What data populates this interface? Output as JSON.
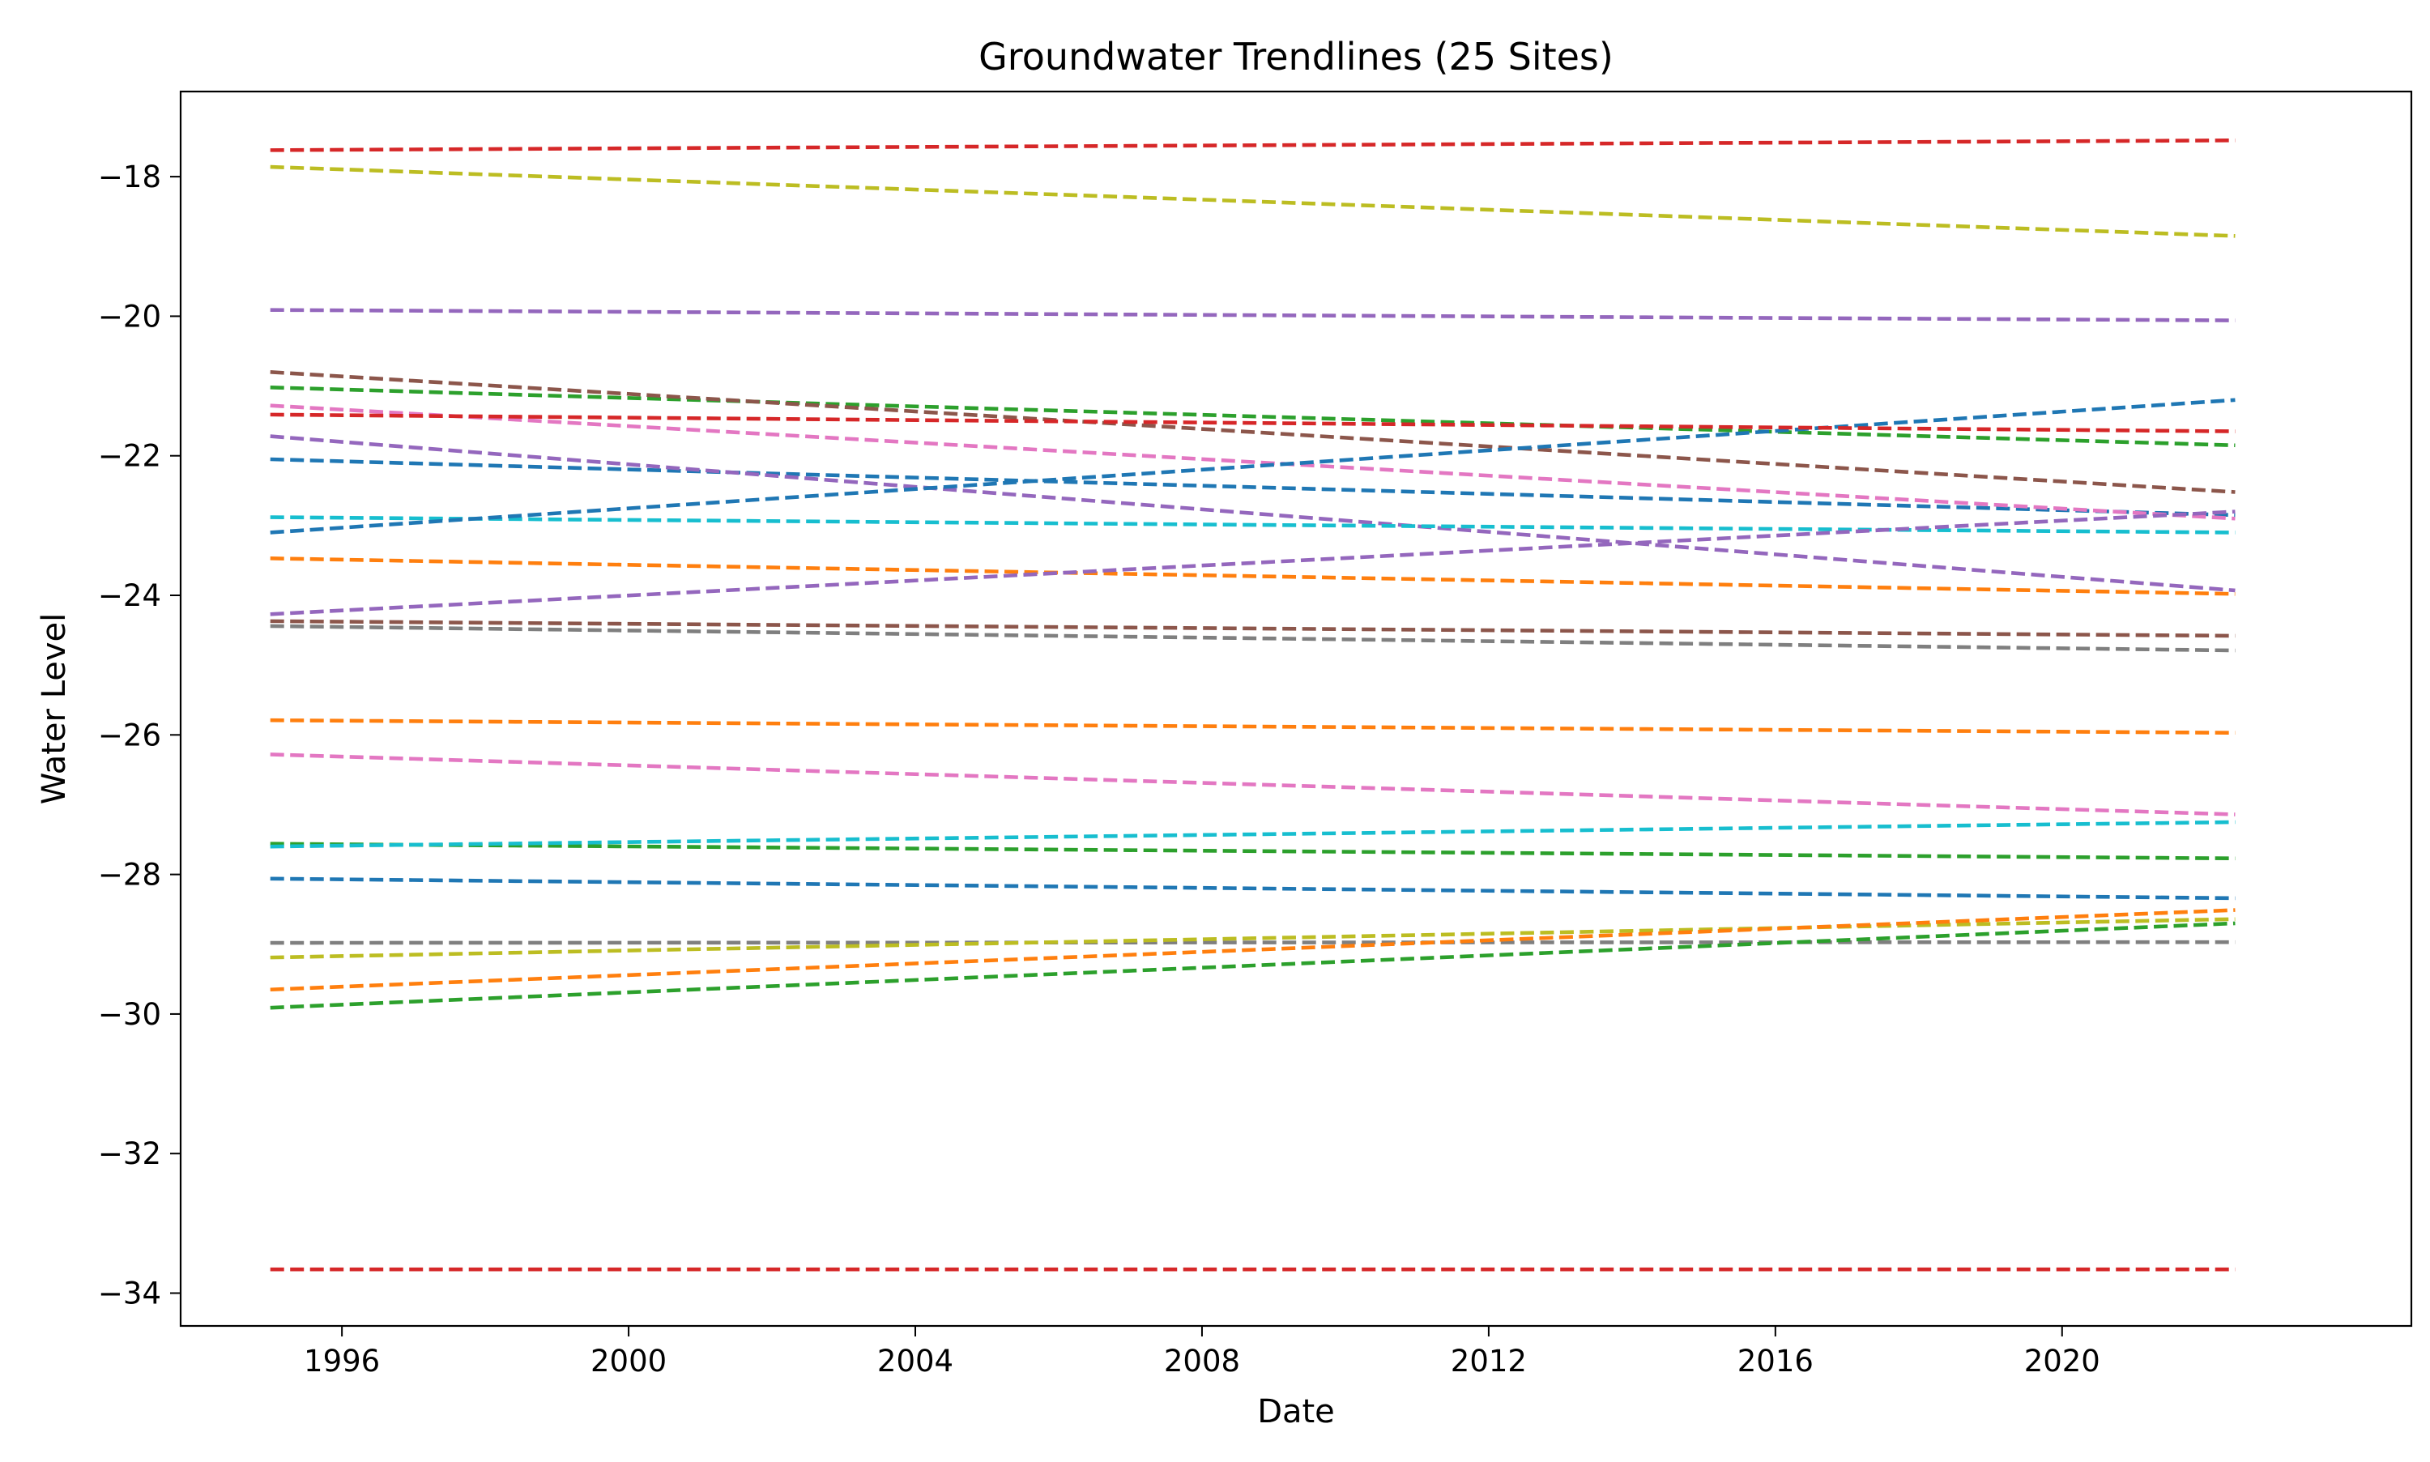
{
  "chart_data": {
    "type": "line",
    "title": "Groundwater Trendlines (25 Sites)",
    "xlabel": "Date",
    "ylabel": "Water Level",
    "x_ticks": [
      "1996",
      "2000",
      "2004",
      "2008",
      "2012",
      "2016",
      "2020"
    ],
    "y_ticks": [
      "−18",
      "−20",
      "−22",
      "−24",
      "−26",
      "−28",
      "−30",
      "−32",
      "−34"
    ],
    "xlim": [
      "1993-10-01",
      "2024-11-15"
    ],
    "ylim": [
      -34.47,
      -16.78
    ],
    "x": [
      "1995-01-01",
      "2022-06-01"
    ],
    "line_style": "dashed",
    "grid": false,
    "legend": "none",
    "series": [
      {
        "values": [
          -22.05,
          -22.85
        ],
        "color": "#1f77b4"
      },
      {
        "values": [
          -23.47,
          -23.98
        ],
        "color": "#ff7f0e"
      },
      {
        "values": [
          -21.02,
          -21.85
        ],
        "color": "#2ca02c"
      },
      {
        "values": [
          -17.62,
          -17.48
        ],
        "color": "#d62728"
      },
      {
        "values": [
          -21.72,
          -23.93
        ],
        "color": "#9467bd"
      },
      {
        "values": [
          -20.8,
          -22.52
        ],
        "color": "#8c564b"
      },
      {
        "values": [
          -21.28,
          -22.9
        ],
        "color": "#e377c2"
      },
      {
        "values": [
          -24.44,
          -24.79
        ],
        "color": "#7f7f7f"
      },
      {
        "values": [
          -17.86,
          -18.85
        ],
        "color": "#bcbd22"
      },
      {
        "values": [
          -22.88,
          -23.1
        ],
        "color": "#17becf"
      },
      {
        "values": [
          -23.1,
          -21.2
        ],
        "color": "#1f77b4"
      },
      {
        "values": [
          -25.79,
          -25.97
        ],
        "color": "#ff7f0e"
      },
      {
        "values": [
          -27.56,
          -27.77
        ],
        "color": "#2ca02c"
      },
      {
        "values": [
          -21.41,
          -21.65
        ],
        "color": "#d62728"
      },
      {
        "values": [
          -19.91,
          -20.06
        ],
        "color": "#9467bd"
      },
      {
        "values": [
          -24.37,
          -24.58
        ],
        "color": "#8c564b"
      },
      {
        "values": [
          -26.28,
          -27.14
        ],
        "color": "#e377c2"
      },
      {
        "values": [
          -28.98,
          -28.97
        ],
        "color": "#7f7f7f"
      },
      {
        "values": [
          -29.19,
          -28.64
        ],
        "color": "#bcbd22"
      },
      {
        "values": [
          -27.6,
          -27.25
        ],
        "color": "#17becf"
      },
      {
        "values": [
          -28.06,
          -28.34
        ],
        "color": "#1f77b4"
      },
      {
        "values": [
          -29.65,
          -28.51
        ],
        "color": "#ff7f0e"
      },
      {
        "values": [
          -29.91,
          -28.7
        ],
        "color": "#2ca02c"
      },
      {
        "values": [
          -33.66,
          -33.66
        ],
        "color": "#d62728"
      },
      {
        "values": [
          -24.27,
          -22.8
        ],
        "color": "#9467bd"
      }
    ]
  }
}
